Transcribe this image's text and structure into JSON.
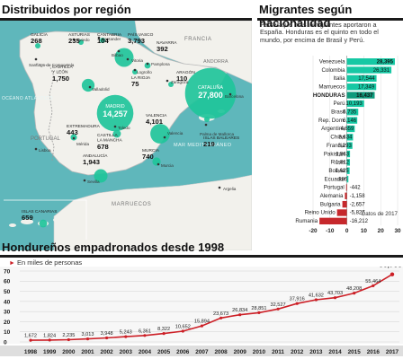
{
  "map": {
    "title": "Distribuidos por región",
    "regions": [
      {
        "name": "GALICIA",
        "value": "268"
      },
      {
        "name": "ASTURIAS",
        "value": "235"
      },
      {
        "name": "CANTABRIA",
        "value": "104"
      },
      {
        "name": "PAÍS VASCO",
        "value": "3,793"
      },
      {
        "name": "NAVARRA",
        "value": "392"
      },
      {
        "name": "LA RIOJA",
        "value": "75"
      },
      {
        "name": "ARAGÓN",
        "value": "110"
      },
      {
        "name": "CASTILLA Y LEÓN",
        "value": "1,750"
      },
      {
        "name": "CATALUÑA",
        "value": "27,800"
      },
      {
        "name": "MADRID",
        "value": "14,257"
      },
      {
        "name": "VALENCIA",
        "value": "4,101"
      },
      {
        "name": "EXTREMADURA",
        "value": "443"
      },
      {
        "name": "CASTILLA LA MANCHA",
        "value": "678"
      },
      {
        "name": "MURCIA",
        "value": "740"
      },
      {
        "name": "ISLAS BALEARES",
        "value": "219"
      },
      {
        "name": "ANDALUCÍA",
        "value": "1,943"
      },
      {
        "name": "ISLAS CANARIAS",
        "value": "659"
      }
    ],
    "cities": [
      "Oviedo",
      "Santander",
      "Bilbao",
      "Vitoria",
      "Pamplona",
      "Logroño",
      "Zaragoza",
      "Santiago de Compostela",
      "Valladolid",
      "Barcelona",
      "Toledo",
      "Mérida",
      "Sevilla",
      "Murcia",
      "Palma de Mallorca",
      "Valencia",
      "Lisboa",
      "Argelia"
    ],
    "labels": {
      "francia": "FRANCIA",
      "andorra": "ANDORRA",
      "portugal": "PORTUGAL",
      "oceano": "OCÉANO ATLÁNTICO",
      "mar": "MAR MEDITERRÁNEO",
      "marruecos": "MARRUECOS"
    },
    "colors": {
      "sea": "#5fb7bb",
      "land": "#f2f1ec",
      "bubble": "#1fc49a"
    }
  },
  "bars": {
    "title": "Migrantes según nacionalidad",
    "intro": "Países que más inmigrantes aportaron a España. Honduras es el quinto en todo el mundo, por encima de Brasil y Perú.",
    "note": "Datos de 2017",
    "colors": {
      "positive": "#16c8a4",
      "negative": "#c6282c",
      "highlight": "#0f9a7c"
    }
  },
  "line": {
    "title": "Hondureños empadronados desde 1998",
    "unit": "En miles de personas",
    "colors": {
      "line": "#cc1f26",
      "band": "#dedede"
    }
  },
  "chart_data": [
    {
      "type": "bar",
      "orientation": "horizontal",
      "title": "Migrantes según nacionalidad",
      "categories": [
        "Venezuela",
        "Colombia",
        "Italia",
        "Marruecos",
        "HONDURAS",
        "Perú",
        "Brasil",
        "Rep. Dom.",
        "Argentina",
        "China",
        "Francia",
        "Pakistán",
        "Rusia",
        "Bolivia",
        "Ecuador",
        "Portugal",
        "Alemania",
        "Bulgaria",
        "Reino Unido",
        "Rumania"
      ],
      "labels": [
        "28,395",
        "26,331",
        "17,544",
        "17,349",
        "16,437",
        "10,193",
        "6,735",
        "6,146",
        "4,659",
        "3,634",
        "3,293",
        "1,863",
        "1,812",
        "1,625",
        "886",
        "-442",
        "-1,158",
        "-2,657",
        "-5,827",
        "-16,212"
      ],
      "values": [
        28395,
        26331,
        17544,
        17349,
        16437,
        10193,
        6735,
        6146,
        4659,
        3634,
        3293,
        1863,
        1812,
        1625,
        886,
        -442,
        -1158,
        -2657,
        -5827,
        -16212
      ],
      "highlight": "HONDURAS",
      "xticks": [
        "-20",
        "-10",
        "0",
        "10",
        "20",
        "30"
      ],
      "xtick_values": [
        -20000,
        -10000,
        0,
        10000,
        20000,
        30000
      ],
      "xlim": [
        -20000,
        30000
      ]
    },
    {
      "type": "line",
      "title": "Hondureños empadronados desde 1998",
      "x": [
        "1998",
        "1999",
        "2000",
        "2001",
        "2002",
        "2003",
        "2004",
        "2005",
        "2006",
        "2007",
        "2008",
        "2009",
        "2010",
        "2011",
        "2012",
        "2013",
        "2014",
        "2015",
        "2016",
        "2017"
      ],
      "labels": [
        "1,672",
        "1,824",
        "2,235",
        "3,013",
        "3,948",
        "5,243",
        "6,361",
        "8,322",
        "10,652",
        "15,894",
        "23,673",
        "26,834",
        "28,851",
        "32,527",
        "37,916",
        "41,632",
        "43,703",
        "48,208",
        "55,464",
        "66,709"
      ],
      "values": [
        1672,
        1824,
        2235,
        3013,
        3948,
        5243,
        6361,
        8322,
        10652,
        15894,
        23673,
        26834,
        28851,
        32527,
        37916,
        41632,
        43703,
        48208,
        55464,
        66709
      ],
      "yticks": [
        "0",
        "10",
        "20",
        "30",
        "40",
        "50",
        "60",
        "70"
      ],
      "ytick_values": [
        0,
        10000,
        20000,
        30000,
        40000,
        50000,
        60000,
        70000
      ],
      "ylim": [
        0,
        70000
      ]
    }
  ]
}
